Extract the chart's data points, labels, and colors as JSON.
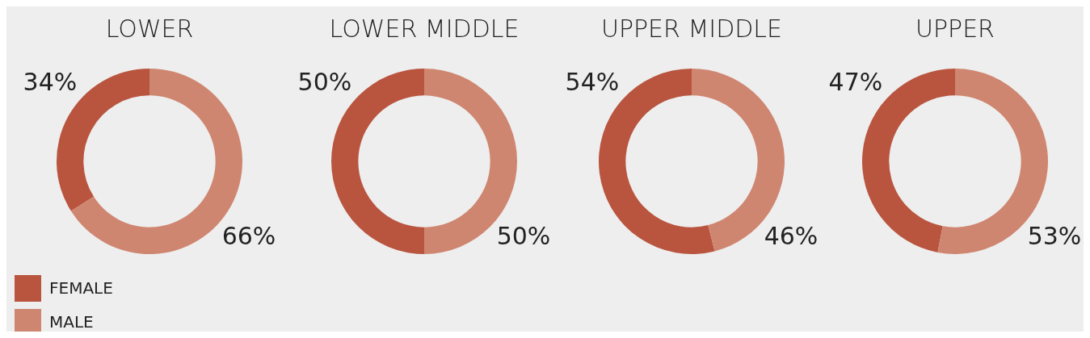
{
  "chart_data": [
    {
      "type": "donut",
      "title": "LOWER",
      "categories": [
        "FEMALE",
        "MALE"
      ],
      "values": [
        34,
        66
      ],
      "value_labels": [
        "34%",
        "66%"
      ],
      "colors": [
        "#b9553f",
        "#cf8670"
      ],
      "legend": "bottom left"
    },
    {
      "type": "donut",
      "title": "LOWER MIDDLE",
      "categories": [
        null,
        null
      ],
      "values": [
        50,
        50
      ],
      "value_labels": [
        "50%",
        "50%"
      ],
      "colors": [
        "#b9553f",
        "#cf8670"
      ]
    },
    {
      "type": "donut",
      "title": "UPPER MIDDLE",
      "categories": [
        null,
        null
      ],
      "values": [
        54,
        46
      ],
      "value_labels": [
        "54%",
        "46%"
      ],
      "colors": [
        "#b9553f",
        "#cf8670"
      ]
    },
    {
      "type": "donut",
      "title": "UPPER",
      "categories": [
        null,
        null
      ],
      "values": [
        47,
        53
      ],
      "value_labels": [
        "47%",
        "53%"
      ],
      "colors": [
        "#b9553f",
        "#cf8670"
      ]
    }
  ]
}
